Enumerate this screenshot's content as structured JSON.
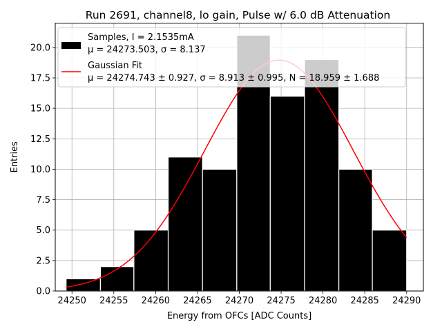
{
  "chart_data": {
    "type": "bar",
    "title": "Run 2691, channel8, lo gain, Pulse w/ 6.0 dB Attenuation",
    "xlabel": "Energy from OFCs [ADC Counts]",
    "ylabel": "Entries",
    "xlim": [
      24248,
      24292
    ],
    "ylim": [
      0,
      22
    ],
    "xticks": [
      24250,
      24255,
      24260,
      24265,
      24270,
      24275,
      24280,
      24285,
      24290
    ],
    "yticks": [
      0.0,
      2.5,
      5.0,
      7.5,
      10.0,
      12.5,
      15.0,
      17.5,
      20.0
    ],
    "ytick_labels": [
      "0.0",
      "2.5",
      "5.0",
      "7.5",
      "10.0",
      "12.5",
      "15.0",
      "17.5",
      "20.0"
    ],
    "grid": true,
    "legend_position": "top-left",
    "bin_edges": [
      24249.3,
      24253.4,
      24257.4,
      24261.5,
      24265.6,
      24269.7,
      24273.7,
      24277.8,
      24281.9,
      24285.9,
      24290.0
    ],
    "counts": [
      1,
      2,
      5,
      11,
      10,
      21,
      16,
      19,
      10,
      5
    ],
    "series": [
      {
        "name": "Samples, I = 2.1535mA",
        "stats": "μ = 24273.503, σ = 8.137",
        "color": "#000000",
        "edge_color": "#ffffff"
      },
      {
        "name": "Gaussian Fit",
        "stats": "μ = 24274.743 ± 0.927, σ = 8.913 ± 0.995, N = 18.959 ± 1.688",
        "color": "#ff0000",
        "mu": 24274.743,
        "sigma": 8.913,
        "amplitude": 18.959,
        "x_range": [
          24249.3,
          24290.0
        ]
      }
    ],
    "colors": {
      "grid": "#b0b0b0",
      "legend_border": "#cccccc",
      "legend_bg": "#ffffff"
    }
  }
}
